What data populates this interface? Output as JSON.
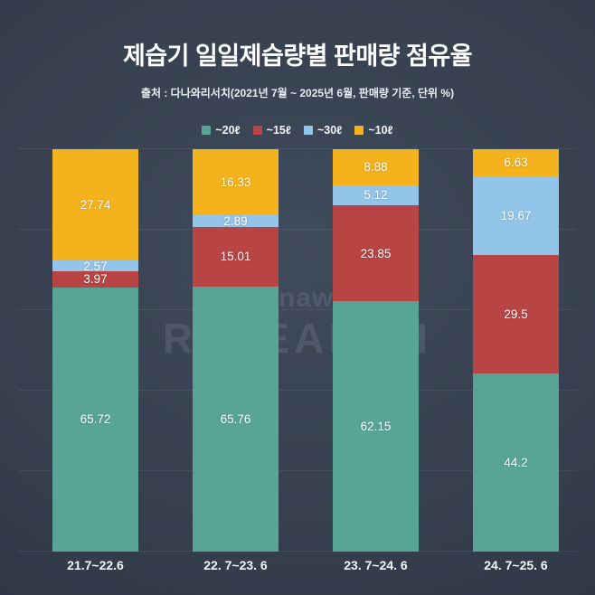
{
  "header": {
    "title": "제습기 일일제습량별 판매량 점유율",
    "subtitle": "출처 : 다나와리서치(2021년 7월 ~ 2025년 6월, 판매량 기준, 단위 %)"
  },
  "watermark": {
    "line1": "danawa",
    "line2": "RESEARCH"
  },
  "chart_data": {
    "type": "bar",
    "stacked": true,
    "title": "제습기 일일제습량별 판매량 점유율",
    "unit": "%",
    "ylim": [
      0,
      100
    ],
    "legend_position": "top",
    "grid": "faint-horizontal",
    "categories": [
      "21.7~22.6",
      "22. 7~23. 6",
      "23. 7~24. 6",
      "24. 7~25. 6"
    ],
    "series": [
      {
        "name": "~20ℓ",
        "color": "#58a597",
        "values": [
          65.72,
          65.76,
          62.15,
          44.2
        ]
      },
      {
        "name": "~15ℓ",
        "color": "#b94444",
        "values": [
          3.97,
          15.01,
          23.85,
          29.5
        ]
      },
      {
        "name": "~30ℓ",
        "color": "#92c5e9",
        "values": [
          2.57,
          2.89,
          5.12,
          19.67
        ]
      },
      {
        "name": "~10ℓ",
        "color": "#f4b31c",
        "values": [
          27.74,
          16.33,
          8.88,
          6.63
        ]
      }
    ]
  }
}
